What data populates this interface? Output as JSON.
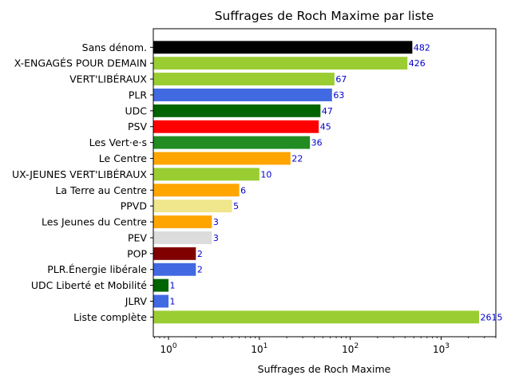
{
  "chart_data": {
    "type": "bar",
    "orientation": "horizontal",
    "title": "Suffrages de Roch Maxime par liste",
    "xlabel": "Suffrages de Roch Maxime",
    "ylabel": "",
    "xscale": "log",
    "xlim": [
      0.68,
      4000
    ],
    "x_ticks": [
      {
        "value": 1,
        "base": "10",
        "exp": "0"
      },
      {
        "value": 10,
        "base": "10",
        "exp": "1"
      },
      {
        "value": 100,
        "base": "10",
        "exp": "2"
      },
      {
        "value": 1000,
        "base": "10",
        "exp": "3"
      }
    ],
    "grid": false,
    "value_label_color": "#0000cc",
    "bars": [
      {
        "label": "Sans dénom.",
        "value": 482,
        "color": "#000000"
      },
      {
        "label": "X-ENGAGÉS POUR DEMAIN",
        "value": 426,
        "color": "#9acd32"
      },
      {
        "label": "VERT'LIBÉRAUX",
        "value": 67,
        "color": "#9acd32"
      },
      {
        "label": "PLR",
        "value": 63,
        "color": "#4169e1"
      },
      {
        "label": "UDC",
        "value": 47,
        "color": "#006400"
      },
      {
        "label": "PSV",
        "value": 45,
        "color": "#ff0000"
      },
      {
        "label": "Les Vert·e·s",
        "value": 36,
        "color": "#228b22"
      },
      {
        "label": "Le Centre",
        "value": 22,
        "color": "#ffa500"
      },
      {
        "label": "UX-JEUNES VERT'LIBÉRAUX",
        "value": 10,
        "color": "#9acd32"
      },
      {
        "label": "La Terre au Centre",
        "value": 6,
        "color": "#ffa500"
      },
      {
        "label": "PPVD",
        "value": 5,
        "color": "#f0e68c"
      },
      {
        "label": "Les Jeunes du Centre",
        "value": 3,
        "color": "#ffa500"
      },
      {
        "label": "PEV",
        "value": 3,
        "color": "#dcdcdc"
      },
      {
        "label": "POP",
        "value": 2,
        "color": "#800000"
      },
      {
        "label": "PLR.Énergie libérale",
        "value": 2,
        "color": "#4169e1"
      },
      {
        "label": "UDC Liberté et Mobilité",
        "value": 1,
        "color": "#006400"
      },
      {
        "label": "JLRV",
        "value": 1,
        "color": "#4169e1"
      },
      {
        "label": "Liste complète",
        "value": 2615,
        "color": "#9acd32"
      }
    ]
  }
}
